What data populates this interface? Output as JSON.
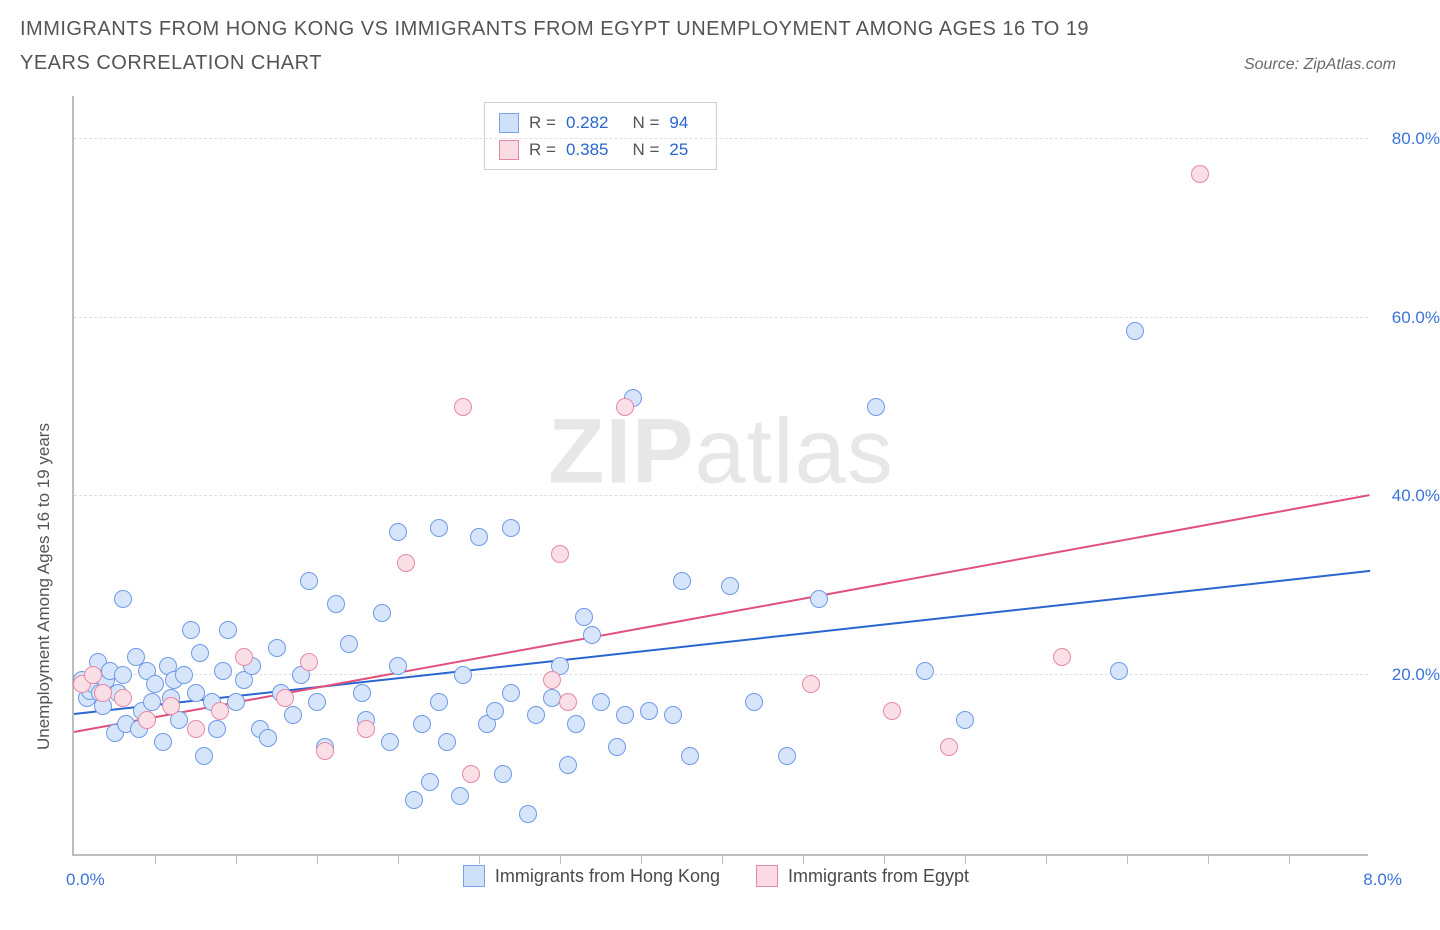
{
  "title": "IMMIGRANTS FROM HONG KONG VS IMMIGRANTS FROM EGYPT UNEMPLOYMENT AMONG AGES 16 TO 19 YEARS CORRELATION CHART",
  "source": "Source: ZipAtlas.com",
  "y_axis_label": "Unemployment Among Ages 16 to 19 years",
  "watermark_bold": "ZIP",
  "watermark_rest": "atlas",
  "chart": {
    "type": "scatter",
    "xlim": [
      0,
      8
    ],
    "ylim": [
      0,
      85
    ],
    "x_range_labels": {
      "min": "0.0%",
      "max": "8.0%"
    },
    "x_ticks": [
      0.5,
      1.0,
      1.5,
      2.0,
      2.5,
      3.0,
      3.5,
      4.0,
      4.5,
      5.0,
      5.5,
      6.0,
      6.5,
      7.0,
      7.5
    ],
    "y_ticks": [
      {
        "v": 20,
        "label": "20.0%"
      },
      {
        "v": 40,
        "label": "40.0%"
      },
      {
        "v": 60,
        "label": "60.0%"
      },
      {
        "v": 80,
        "label": "80.0%"
      }
    ],
    "grid_color": "#e0e0e0",
    "axis_color": "#bdbdbd",
    "background_color": "#ffffff",
    "marker_radius": 8,
    "marker_border_width": 1.5,
    "series": [
      {
        "name": "Immigrants from Hong Kong",
        "fill": "#d7e5fb",
        "stroke": "#6f9ae6",
        "legend_swatch_fill": "#cfe0fa",
        "legend_swatch_stroke": "#7aa4e8",
        "R": "0.282",
        "N": "94",
        "trend": {
          "x1": 0,
          "y1": 15.5,
          "x2": 8,
          "y2": 31.5,
          "color": "#2a66d0",
          "width": 2
        },
        "points": [
          [
            0.05,
            19.5
          ],
          [
            0.08,
            17.5
          ],
          [
            0.1,
            18.2
          ],
          [
            0.12,
            19.0
          ],
          [
            0.13,
            20.0
          ],
          [
            0.15,
            21.5
          ],
          [
            0.16,
            18.0
          ],
          [
            0.18,
            16.5
          ],
          [
            0.2,
            19.5
          ],
          [
            0.22,
            20.5
          ],
          [
            0.25,
            13.5
          ],
          [
            0.27,
            18.0
          ],
          [
            0.3,
            20.0
          ],
          [
            0.32,
            14.5
          ],
          [
            0.3,
            28.5
          ],
          [
            0.38,
            22.0
          ],
          [
            0.42,
            16.0
          ],
          [
            0.45,
            20.5
          ],
          [
            0.48,
            17.0
          ],
          [
            0.5,
            19.0
          ],
          [
            0.55,
            12.5
          ],
          [
            0.58,
            21.0
          ],
          [
            0.6,
            17.5
          ],
          [
            0.62,
            19.5
          ],
          [
            0.65,
            15.0
          ],
          [
            0.68,
            20.0
          ],
          [
            0.72,
            25.0
          ],
          [
            0.75,
            18.0
          ],
          [
            0.78,
            22.5
          ],
          [
            0.8,
            11.0
          ],
          [
            0.85,
            17.0
          ],
          [
            0.88,
            14.0
          ],
          [
            0.92,
            20.5
          ],
          [
            0.95,
            25.0
          ],
          [
            1.0,
            17.0
          ],
          [
            1.05,
            19.5
          ],
          [
            1.1,
            21.0
          ],
          [
            1.15,
            14.0
          ],
          [
            1.2,
            13.0
          ],
          [
            1.25,
            23.0
          ],
          [
            1.28,
            18.0
          ],
          [
            1.35,
            15.5
          ],
          [
            1.4,
            20.0
          ],
          [
            1.45,
            30.5
          ],
          [
            1.5,
            17.0
          ],
          [
            1.55,
            12.0
          ],
          [
            1.62,
            28.0
          ],
          [
            1.7,
            23.5
          ],
          [
            1.78,
            18.0
          ],
          [
            1.8,
            15.0
          ],
          [
            1.9,
            27.0
          ],
          [
            1.95,
            12.5
          ],
          [
            2.0,
            36.0
          ],
          [
            2.0,
            21.0
          ],
          [
            2.1,
            6.0
          ],
          [
            2.15,
            14.5
          ],
          [
            2.2,
            8.0
          ],
          [
            2.25,
            17.0
          ],
          [
            2.25,
            36.5
          ],
          [
            2.3,
            12.5
          ],
          [
            2.38,
            6.5
          ],
          [
            2.4,
            20.0
          ],
          [
            2.5,
            35.5
          ],
          [
            2.55,
            14.5
          ],
          [
            2.6,
            16.0
          ],
          [
            2.65,
            9.0
          ],
          [
            2.7,
            18.0
          ],
          [
            2.7,
            36.5
          ],
          [
            2.8,
            4.5
          ],
          [
            2.85,
            15.5
          ],
          [
            2.95,
            17.5
          ],
          [
            3.0,
            21.0
          ],
          [
            3.05,
            10.0
          ],
          [
            3.1,
            14.5
          ],
          [
            3.15,
            26.5
          ],
          [
            3.2,
            24.5
          ],
          [
            3.25,
            17.0
          ],
          [
            3.35,
            12.0
          ],
          [
            3.4,
            15.5
          ],
          [
            3.55,
            16.0
          ],
          [
            3.45,
            51.0
          ],
          [
            3.7,
            15.5
          ],
          [
            3.75,
            30.5
          ],
          [
            3.8,
            11.0
          ],
          [
            4.05,
            30.0
          ],
          [
            4.2,
            17.0
          ],
          [
            4.4,
            11.0
          ],
          [
            4.6,
            28.5
          ],
          [
            4.95,
            50.0
          ],
          [
            5.25,
            20.5
          ],
          [
            5.5,
            15.0
          ],
          [
            6.45,
            20.5
          ],
          [
            6.55,
            58.5
          ],
          [
            0.4,
            14.0
          ]
        ]
      },
      {
        "name": "Immigrants from Egypt",
        "fill": "#fbdfe6",
        "stroke": "#e68aa3",
        "legend_swatch_fill": "#fadae3",
        "legend_swatch_stroke": "#e68aa3",
        "R": "0.385",
        "N": "25",
        "trend": {
          "x1": 0,
          "y1": 13.5,
          "x2": 8,
          "y2": 40.0,
          "color": "#e0517c",
          "width": 2
        },
        "points": [
          [
            0.05,
            19.0
          ],
          [
            0.12,
            20.0
          ],
          [
            0.18,
            18.0
          ],
          [
            0.3,
            17.5
          ],
          [
            0.45,
            15.0
          ],
          [
            0.6,
            16.5
          ],
          [
            0.75,
            14.0
          ],
          [
            0.9,
            16.0
          ],
          [
            1.05,
            22.0
          ],
          [
            1.3,
            17.5
          ],
          [
            1.45,
            21.5
          ],
          [
            1.55,
            11.5
          ],
          [
            1.8,
            14.0
          ],
          [
            2.05,
            32.5
          ],
          [
            2.45,
            9.0
          ],
          [
            2.95,
            19.5
          ],
          [
            3.0,
            33.5
          ],
          [
            3.05,
            17.0
          ],
          [
            2.4,
            50.0
          ],
          [
            3.4,
            50.0
          ],
          [
            4.55,
            19.0
          ],
          [
            5.05,
            16.0
          ],
          [
            5.4,
            12.0
          ],
          [
            6.1,
            22.0
          ],
          [
            6.95,
            76.0
          ]
        ]
      }
    ]
  },
  "legend_bottom": {
    "items": [
      {
        "swatch_fill": "#cfe0fa",
        "swatch_stroke": "#7aa4e8",
        "label": "Immigrants from Hong Kong"
      },
      {
        "swatch_fill": "#fadae3",
        "swatch_stroke": "#e68aa3",
        "label": "Immigrants from Egypt"
      }
    ]
  }
}
